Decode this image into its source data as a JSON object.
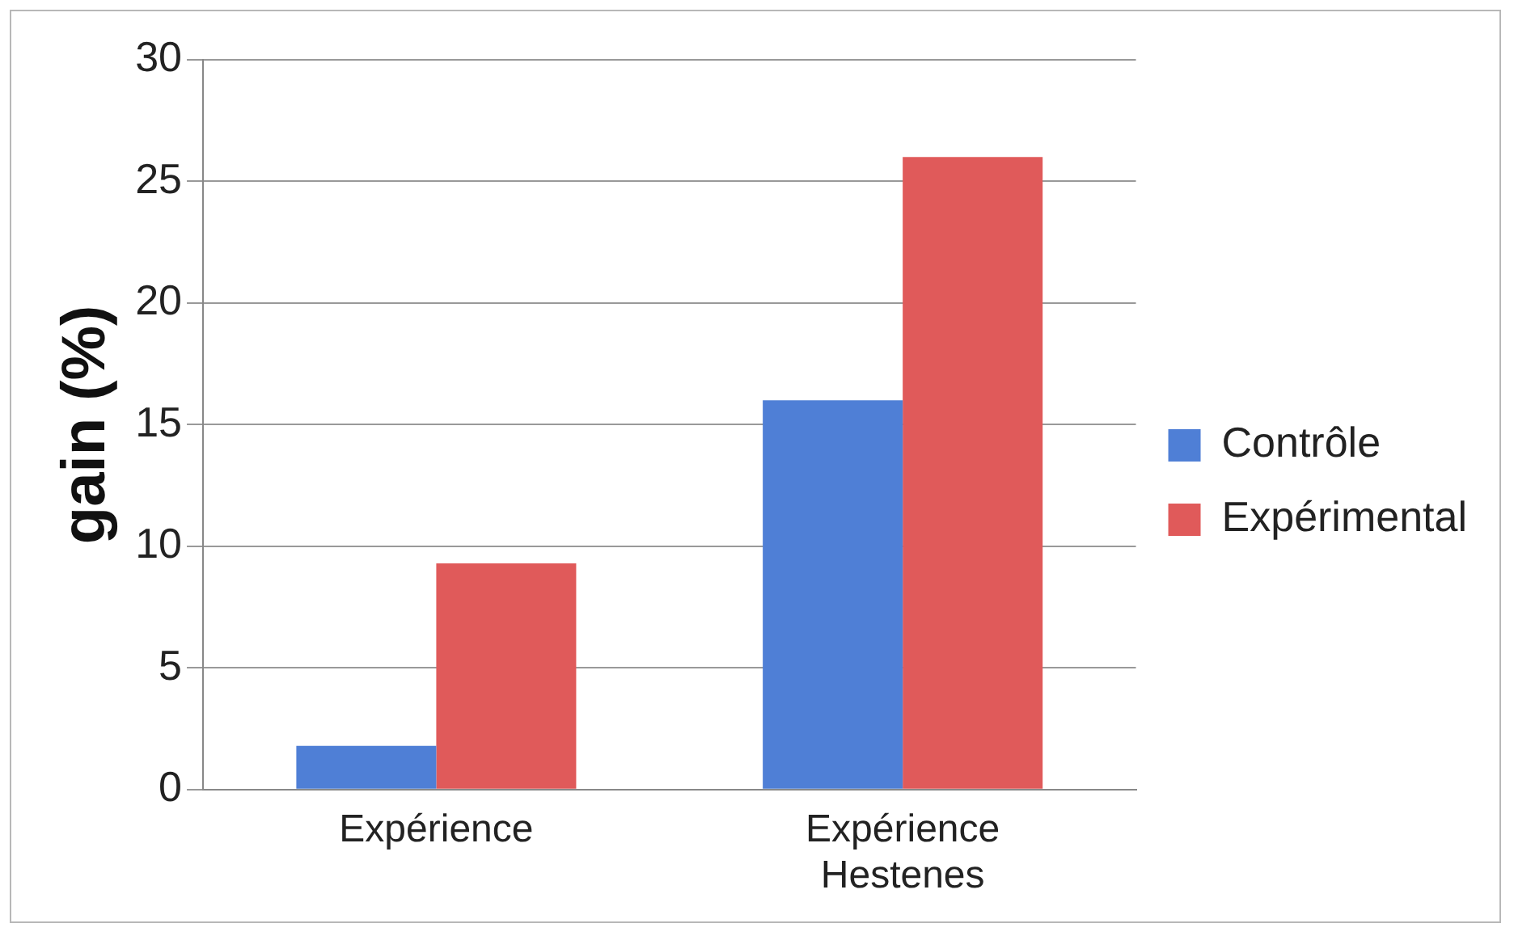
{
  "chart_data": {
    "type": "bar",
    "ylabel": "gain (%)",
    "categories": [
      "Expérience",
      "Expérience Hestenes"
    ],
    "series": [
      {
        "name": "Contrôle",
        "color": "#4f7fd6",
        "values": [
          1.8,
          16
        ]
      },
      {
        "name": "Expérimental",
        "color": "#e05a5a",
        "values": [
          9.3,
          26
        ]
      }
    ],
    "ylim": [
      0,
      30
    ],
    "yticks": [
      0,
      5,
      10,
      15,
      20,
      25,
      30
    ],
    "grid": "y",
    "legend": "right"
  }
}
